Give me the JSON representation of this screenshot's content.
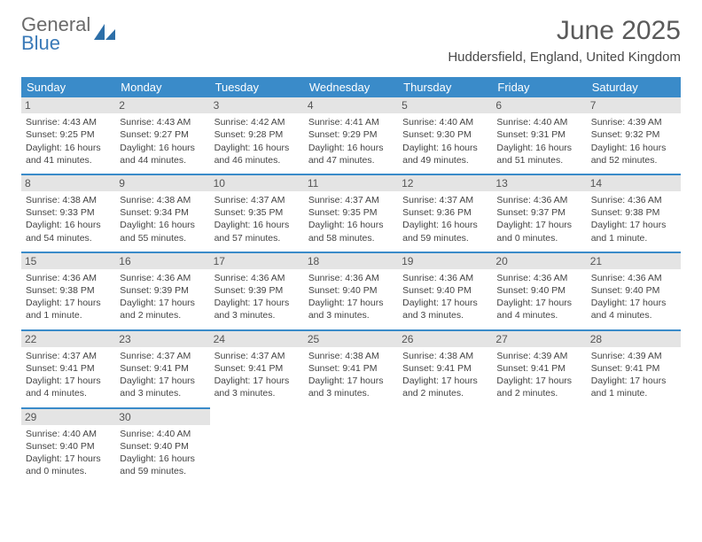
{
  "logo": {
    "line1": "General",
    "line2": "Blue"
  },
  "title": "June 2025",
  "location": "Huddersfield, England, United Kingdom",
  "header_bg": "#3a8bc9",
  "header_fg": "#ffffff",
  "daynum_bg": "#e4e4e4",
  "border_color": "#3a8bc9",
  "days_of_week": [
    "Sunday",
    "Monday",
    "Tuesday",
    "Wednesday",
    "Thursday",
    "Friday",
    "Saturday"
  ],
  "weeks": [
    [
      {
        "n": "1",
        "sr": "Sunrise: 4:43 AM",
        "ss": "Sunset: 9:25 PM",
        "d1": "Daylight: 16 hours",
        "d2": "and 41 minutes."
      },
      {
        "n": "2",
        "sr": "Sunrise: 4:43 AM",
        "ss": "Sunset: 9:27 PM",
        "d1": "Daylight: 16 hours",
        "d2": "and 44 minutes."
      },
      {
        "n": "3",
        "sr": "Sunrise: 4:42 AM",
        "ss": "Sunset: 9:28 PM",
        "d1": "Daylight: 16 hours",
        "d2": "and 46 minutes."
      },
      {
        "n": "4",
        "sr": "Sunrise: 4:41 AM",
        "ss": "Sunset: 9:29 PM",
        "d1": "Daylight: 16 hours",
        "d2": "and 47 minutes."
      },
      {
        "n": "5",
        "sr": "Sunrise: 4:40 AM",
        "ss": "Sunset: 9:30 PM",
        "d1": "Daylight: 16 hours",
        "d2": "and 49 minutes."
      },
      {
        "n": "6",
        "sr": "Sunrise: 4:40 AM",
        "ss": "Sunset: 9:31 PM",
        "d1": "Daylight: 16 hours",
        "d2": "and 51 minutes."
      },
      {
        "n": "7",
        "sr": "Sunrise: 4:39 AM",
        "ss": "Sunset: 9:32 PM",
        "d1": "Daylight: 16 hours",
        "d2": "and 52 minutes."
      }
    ],
    [
      {
        "n": "8",
        "sr": "Sunrise: 4:38 AM",
        "ss": "Sunset: 9:33 PM",
        "d1": "Daylight: 16 hours",
        "d2": "and 54 minutes."
      },
      {
        "n": "9",
        "sr": "Sunrise: 4:38 AM",
        "ss": "Sunset: 9:34 PM",
        "d1": "Daylight: 16 hours",
        "d2": "and 55 minutes."
      },
      {
        "n": "10",
        "sr": "Sunrise: 4:37 AM",
        "ss": "Sunset: 9:35 PM",
        "d1": "Daylight: 16 hours",
        "d2": "and 57 minutes."
      },
      {
        "n": "11",
        "sr": "Sunrise: 4:37 AM",
        "ss": "Sunset: 9:35 PM",
        "d1": "Daylight: 16 hours",
        "d2": "and 58 minutes."
      },
      {
        "n": "12",
        "sr": "Sunrise: 4:37 AM",
        "ss": "Sunset: 9:36 PM",
        "d1": "Daylight: 16 hours",
        "d2": "and 59 minutes."
      },
      {
        "n": "13",
        "sr": "Sunrise: 4:36 AM",
        "ss": "Sunset: 9:37 PM",
        "d1": "Daylight: 17 hours",
        "d2": "and 0 minutes."
      },
      {
        "n": "14",
        "sr": "Sunrise: 4:36 AM",
        "ss": "Sunset: 9:38 PM",
        "d1": "Daylight: 17 hours",
        "d2": "and 1 minute."
      }
    ],
    [
      {
        "n": "15",
        "sr": "Sunrise: 4:36 AM",
        "ss": "Sunset: 9:38 PM",
        "d1": "Daylight: 17 hours",
        "d2": "and 1 minute."
      },
      {
        "n": "16",
        "sr": "Sunrise: 4:36 AM",
        "ss": "Sunset: 9:39 PM",
        "d1": "Daylight: 17 hours",
        "d2": "and 2 minutes."
      },
      {
        "n": "17",
        "sr": "Sunrise: 4:36 AM",
        "ss": "Sunset: 9:39 PM",
        "d1": "Daylight: 17 hours",
        "d2": "and 3 minutes."
      },
      {
        "n": "18",
        "sr": "Sunrise: 4:36 AM",
        "ss": "Sunset: 9:40 PM",
        "d1": "Daylight: 17 hours",
        "d2": "and 3 minutes."
      },
      {
        "n": "19",
        "sr": "Sunrise: 4:36 AM",
        "ss": "Sunset: 9:40 PM",
        "d1": "Daylight: 17 hours",
        "d2": "and 3 minutes."
      },
      {
        "n": "20",
        "sr": "Sunrise: 4:36 AM",
        "ss": "Sunset: 9:40 PM",
        "d1": "Daylight: 17 hours",
        "d2": "and 4 minutes."
      },
      {
        "n": "21",
        "sr": "Sunrise: 4:36 AM",
        "ss": "Sunset: 9:40 PM",
        "d1": "Daylight: 17 hours",
        "d2": "and 4 minutes."
      }
    ],
    [
      {
        "n": "22",
        "sr": "Sunrise: 4:37 AM",
        "ss": "Sunset: 9:41 PM",
        "d1": "Daylight: 17 hours",
        "d2": "and 4 minutes."
      },
      {
        "n": "23",
        "sr": "Sunrise: 4:37 AM",
        "ss": "Sunset: 9:41 PM",
        "d1": "Daylight: 17 hours",
        "d2": "and 3 minutes."
      },
      {
        "n": "24",
        "sr": "Sunrise: 4:37 AM",
        "ss": "Sunset: 9:41 PM",
        "d1": "Daylight: 17 hours",
        "d2": "and 3 minutes."
      },
      {
        "n": "25",
        "sr": "Sunrise: 4:38 AM",
        "ss": "Sunset: 9:41 PM",
        "d1": "Daylight: 17 hours",
        "d2": "and 3 minutes."
      },
      {
        "n": "26",
        "sr": "Sunrise: 4:38 AM",
        "ss": "Sunset: 9:41 PM",
        "d1": "Daylight: 17 hours",
        "d2": "and 2 minutes."
      },
      {
        "n": "27",
        "sr": "Sunrise: 4:39 AM",
        "ss": "Sunset: 9:41 PM",
        "d1": "Daylight: 17 hours",
        "d2": "and 2 minutes."
      },
      {
        "n": "28",
        "sr": "Sunrise: 4:39 AM",
        "ss": "Sunset: 9:41 PM",
        "d1": "Daylight: 17 hours",
        "d2": "and 1 minute."
      }
    ],
    [
      {
        "n": "29",
        "sr": "Sunrise: 4:40 AM",
        "ss": "Sunset: 9:40 PM",
        "d1": "Daylight: 17 hours",
        "d2": "and 0 minutes."
      },
      {
        "n": "30",
        "sr": "Sunrise: 4:40 AM",
        "ss": "Sunset: 9:40 PM",
        "d1": "Daylight: 16 hours",
        "d2": "and 59 minutes."
      },
      null,
      null,
      null,
      null,
      null
    ]
  ]
}
